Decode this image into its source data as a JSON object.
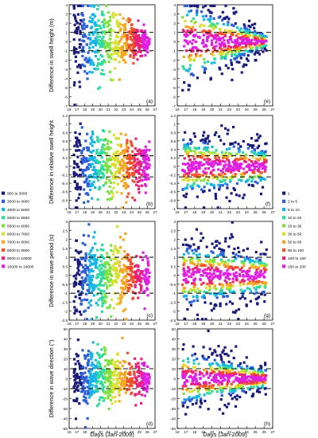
{
  "chart_data": {
    "type": "scatter",
    "description_free": true,
    "x_axis_label": "Days (Jan-2009)",
    "x_ticks": [
      16,
      17,
      18,
      19,
      20,
      21,
      22,
      23,
      24,
      25,
      26,
      27
    ],
    "xlim": [
      16,
      27
    ],
    "panels": [
      {
        "id": "a",
        "label": "(a)",
        "col": 0,
        "row": 0,
        "ylabel": "Difference in swell height (m)",
        "ylim": [
          -7,
          4
        ],
        "yticks": [
          -7,
          -6,
          -5,
          -4,
          -3,
          -2,
          -1,
          0,
          1,
          2,
          3,
          4
        ],
        "ytick_labels": [
          "-7",
          "-6",
          "-5",
          "-4",
          "-3",
          "-2",
          "-1",
          "0",
          "1",
          "2",
          "3",
          "4"
        ],
        "dash_lines": [
          1.0,
          -1.0
        ],
        "spread_start": 6.5,
        "spread_end": 1.0,
        "color_scheme": "time"
      },
      {
        "id": "e",
        "label": "(e)",
        "col": 1,
        "row": 0,
        "ylabel": "",
        "ylim": [
          -7,
          4
        ],
        "yticks": [
          -7,
          -6,
          -5,
          -4,
          -3,
          -2,
          -1,
          0,
          1,
          2,
          3,
          4
        ],
        "ytick_labels": [
          "-7",
          "-6",
          "-5",
          "-4",
          "-3",
          "-2",
          "-1",
          "0",
          "1",
          "2",
          "3",
          "4"
        ],
        "dash_lines": [
          1.0,
          -1.0
        ],
        "spread_start": 6.5,
        "spread_end": 1.0,
        "color_scheme": "density"
      },
      {
        "id": "b",
        "label": "(b)",
        "col": 0,
        "row": 1,
        "ylabel": "Difference in relative swell height",
        "ylim": [
          -1.0,
          1.2
        ],
        "yticks": [
          -1.0,
          -0.8,
          -0.6,
          -0.4,
          -0.2,
          0,
          0.2,
          0.4,
          0.6,
          0.8,
          1.0,
          1.2
        ],
        "ytick_labels": [
          "-1",
          "-0.8",
          "-0.6",
          "-0.4",
          "-0.2",
          "0",
          "0.2",
          "0.4",
          "0.6",
          "0.8",
          "1",
          "1.2"
        ],
        "dash_lines": [
          0.25,
          -0.25
        ],
        "spread_start": 1.0,
        "spread_end": 0.6,
        "color_scheme": "time"
      },
      {
        "id": "f",
        "label": "(f)",
        "col": 1,
        "row": 1,
        "ylabel": "",
        "ylim": [
          -1.0,
          1.2
        ],
        "yticks": [
          -1.0,
          -0.8,
          -0.6,
          -0.4,
          -0.2,
          0,
          0.2,
          0.4,
          0.6,
          0.8,
          1.0,
          1.2
        ],
        "ytick_labels": [
          "-1",
          "-0.8",
          "-0.6",
          "-0.4",
          "-0.2",
          "0",
          "0.2",
          "0.4",
          "0.6",
          "0.8",
          "1",
          "1.2"
        ],
        "dash_lines": [
          0.25,
          -0.25
        ],
        "spread_start": 1.0,
        "spread_end": 0.6,
        "color_scheme": "density"
      },
      {
        "id": "c",
        "label": "(c)",
        "col": 0,
        "row": 2,
        "ylabel": "Difference in wave period (s)",
        "ylim": [
          -2.5,
          3.0
        ],
        "yticks": [
          -2.5,
          -2.0,
          -1.5,
          -1.0,
          -0.5,
          0,
          0.5,
          1.0,
          1.5,
          2.0,
          2.5,
          3.0
        ],
        "ytick_labels": [
          "-2.5",
          "-2",
          "-1.5",
          "-1",
          "-0.5",
          "0",
          "0.5",
          "1",
          "1.5",
          "2",
          "2.5",
          "3"
        ],
        "dash_lines": [
          1.0,
          -1.0
        ],
        "spread_start": 2.5,
        "spread_end": 1.5,
        "color_scheme": "time"
      },
      {
        "id": "g",
        "label": "(g)",
        "col": 1,
        "row": 2,
        "ylabel": "",
        "ylim": [
          -2.5,
          3.0
        ],
        "yticks": [
          -2.5,
          -2.0,
          -1.5,
          -1.0,
          -0.5,
          0,
          0.5,
          1.0,
          1.5,
          2.0,
          2.5,
          3.0
        ],
        "ytick_labels": [
          "-2.5",
          "-2",
          "-1.5",
          "-1",
          "-0.5",
          "0",
          "0.5",
          "1",
          "1.5",
          "2",
          "2.5",
          "3"
        ],
        "dash_lines": [
          1.0,
          -1.0
        ],
        "spread_start": 2.5,
        "spread_end": 1.5,
        "color_scheme": "density"
      },
      {
        "id": "d",
        "label": "(d)",
        "col": 0,
        "row": 3,
        "ylabel": "Difference in wave direction (°)",
        "ylim": [
          -50,
          50
        ],
        "yticks": [
          -50,
          -40,
          -30,
          -20,
          -10,
          0,
          10,
          20,
          30,
          40,
          50
        ],
        "ytick_labels": [
          "-50",
          "-40",
          "-30",
          "-20",
          "-10",
          "0",
          "10",
          "20",
          "30",
          "40",
          "50"
        ],
        "dash_lines": [
          10,
          -10
        ],
        "spread_start": 40,
        "spread_end": 15,
        "color_scheme": "time"
      },
      {
        "id": "h",
        "label": "(h)",
        "col": 1,
        "row": 3,
        "ylabel": "",
        "ylim": [
          -50,
          50
        ],
        "yticks": [
          -50,
          -40,
          -30,
          -20,
          -10,
          0,
          10,
          20,
          30,
          40,
          50
        ],
        "ytick_labels": [
          "-50",
          "-40",
          "-30",
          "-20",
          "-10",
          "0",
          "10",
          "20",
          "30",
          "40",
          "50"
        ],
        "dash_lines": [
          10,
          -10
        ],
        "spread_start": 40,
        "spread_end": 15,
        "color_scheme": "density"
      }
    ],
    "legend_left": {
      "placement": "left-middle",
      "entries": [
        {
          "label": "900 to 3000",
          "color": "#1a1a7a"
        },
        {
          "label": "3000 to 4000",
          "color": "#2e5fd6"
        },
        {
          "label": "4000 to 5000",
          "color": "#19b4e6"
        },
        {
          "label": "5000 to 5500",
          "color": "#2fd9a0"
        },
        {
          "label": "5500 to 6000",
          "color": "#7fe040"
        },
        {
          "label": "6000 to 7000",
          "color": "#d8e030"
        },
        {
          "label": "7000 to 8000",
          "color": "#f5a623"
        },
        {
          "label": "8000 to 9000",
          "color": "#f0502a"
        },
        {
          "label": "9000 to 10000",
          "color": "#e8227a"
        },
        {
          "label": "10000 to 14000",
          "color": "#e020e0"
        }
      ]
    },
    "legend_right": {
      "placement": "right-middle",
      "entries": [
        {
          "label": "1",
          "color": "#1a1a7a"
        },
        {
          "label": "2 to 5",
          "color": "#2e5fd6"
        },
        {
          "label": "5 to 10",
          "color": "#19b4e6"
        },
        {
          "label": "10 to 20",
          "color": "#2fd9a0"
        },
        {
          "label": "20 to 30",
          "color": "#7fe040"
        },
        {
          "label": "30 to 50",
          "color": "#d8e030"
        },
        {
          "label": "50 to 80",
          "color": "#f5a623"
        },
        {
          "label": "80 to 100",
          "color": "#f0502a"
        },
        {
          "label": "100 to 150",
          "color": "#e8227a"
        },
        {
          "label": "150 to 200",
          "color": "#e020e0"
        }
      ]
    }
  }
}
